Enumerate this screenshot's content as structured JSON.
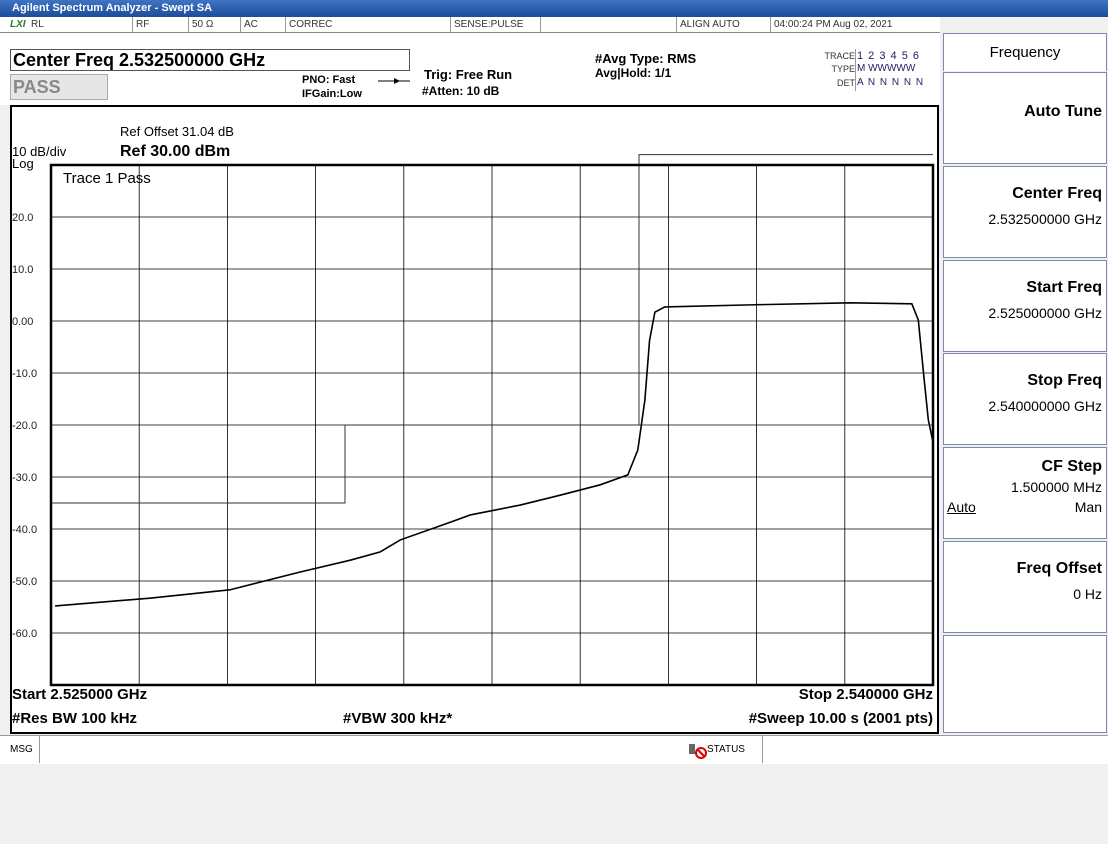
{
  "title_bar": "Agilent Spectrum Analyzer - Swept SA",
  "status_row": {
    "logo": "LXI",
    "items": [
      "RL",
      "RF",
      "50 Ω",
      "AC",
      "CORREC",
      "SENSE:PULSE",
      "ALIGN AUTO",
      "04:00:24 PM Aug 02, 2021"
    ]
  },
  "header": {
    "center_freq": "Center Freq 2.532500000 GHz",
    "pass": "PASS",
    "pno": "PNO: Fast",
    "ifgain": "IFGain:Low",
    "trig": "Trig: Free Run",
    "atten": "#Atten: 10 dB",
    "avg_type": "#Avg Type: RMS",
    "avg_hold": "Avg|Hold: 1/1",
    "trace_box": {
      "trace_label": "TRACE",
      "trace_values": "1 2 3 4 5 6",
      "type_label": "TYPE",
      "type_values": "M WWWWW",
      "det_label": "DET",
      "det_values": "A N N N N N"
    }
  },
  "chart_data": {
    "type": "line",
    "scale": "10 dB/div",
    "scale_type": "Log",
    "ref_offset": "Ref Offset 31.04 dB",
    "ref_level": "Ref 30.00 dBm",
    "trace_status": "Trace 1 Pass",
    "xlim": [
      2.525,
      2.54
    ],
    "xticks": [
      2.525,
      2.5265,
      2.528,
      2.5295,
      2.531,
      2.5325,
      2.534,
      2.5355,
      2.537,
      2.5385,
      2.54
    ],
    "ylim": [
      -70,
      30
    ],
    "yticks": [
      {
        "value": 20,
        "label": "20.0"
      },
      {
        "value": 10,
        "label": "10.0"
      },
      {
        "value": 0,
        "label": "0.00"
      },
      {
        "value": -10,
        "label": "-10.0"
      },
      {
        "value": -20,
        "label": "-20.0"
      },
      {
        "value": -30,
        "label": "-30.0"
      },
      {
        "value": -40,
        "label": "-40.0"
      },
      {
        "value": -50,
        "label": "-50.0"
      },
      {
        "value": -60,
        "label": "-60.0"
      }
    ],
    "grid": true,
    "series": [
      {
        "color": "#000000",
        "x": [
          2.52507,
          2.52668,
          2.52804,
          2.52923,
          2.53009,
          2.5306,
          2.53094,
          2.53179,
          2.53213,
          2.53298,
          2.53366,
          2.53434,
          2.53481,
          2.53498,
          2.5351,
          2.53518,
          2.53527,
          2.53544,
          2.53689,
          2.53859,
          2.53964,
          2.53975,
          2.53985,
          2.53992,
          2.54
        ],
        "values": [
          -54.8,
          -53.3,
          -51.7,
          -48.3,
          -46.0,
          -44.4,
          -42.1,
          -38.7,
          -37.3,
          -35.4,
          -33.5,
          -31.5,
          -29.6,
          -24.8,
          -15.2,
          -3.7,
          1.7,
          2.7,
          3.1,
          3.5,
          3.3,
          0.2,
          -11.3,
          -19.0,
          -23.3
        ]
      },
      {
        "color": "#333333",
        "x": [
          2.525,
          2.53,
          2.53,
          2.535,
          2.535,
          2.54
        ],
        "values": [
          -35,
          -35,
          -20,
          -20,
          32,
          32
        ]
      }
    ]
  },
  "footer": {
    "start": "Start 2.525000 GHz",
    "stop": "Stop 2.540000 GHz",
    "rbw": "#Res BW 100 kHz",
    "vbw": "#VBW 300 kHz*",
    "sweep": "#Sweep  10.00 s (2001 pts)"
  },
  "softkeys": {
    "menu": "Frequency",
    "keys": [
      {
        "label": "Auto Tune"
      },
      {
        "label": "Center Freq",
        "value": "2.532500000 GHz"
      },
      {
        "label": "Start Freq",
        "value": "2.525000000 GHz"
      },
      {
        "label": "Stop Freq",
        "value": "2.540000000 GHz"
      },
      {
        "label": "CF Step",
        "value": "1.500000 MHz",
        "options": [
          "Auto",
          "Man"
        ]
      },
      {
        "label": "Freq Offset",
        "value": "0 Hz"
      }
    ]
  },
  "status_bar": {
    "msg": "MSG",
    "status": "STATUS"
  }
}
